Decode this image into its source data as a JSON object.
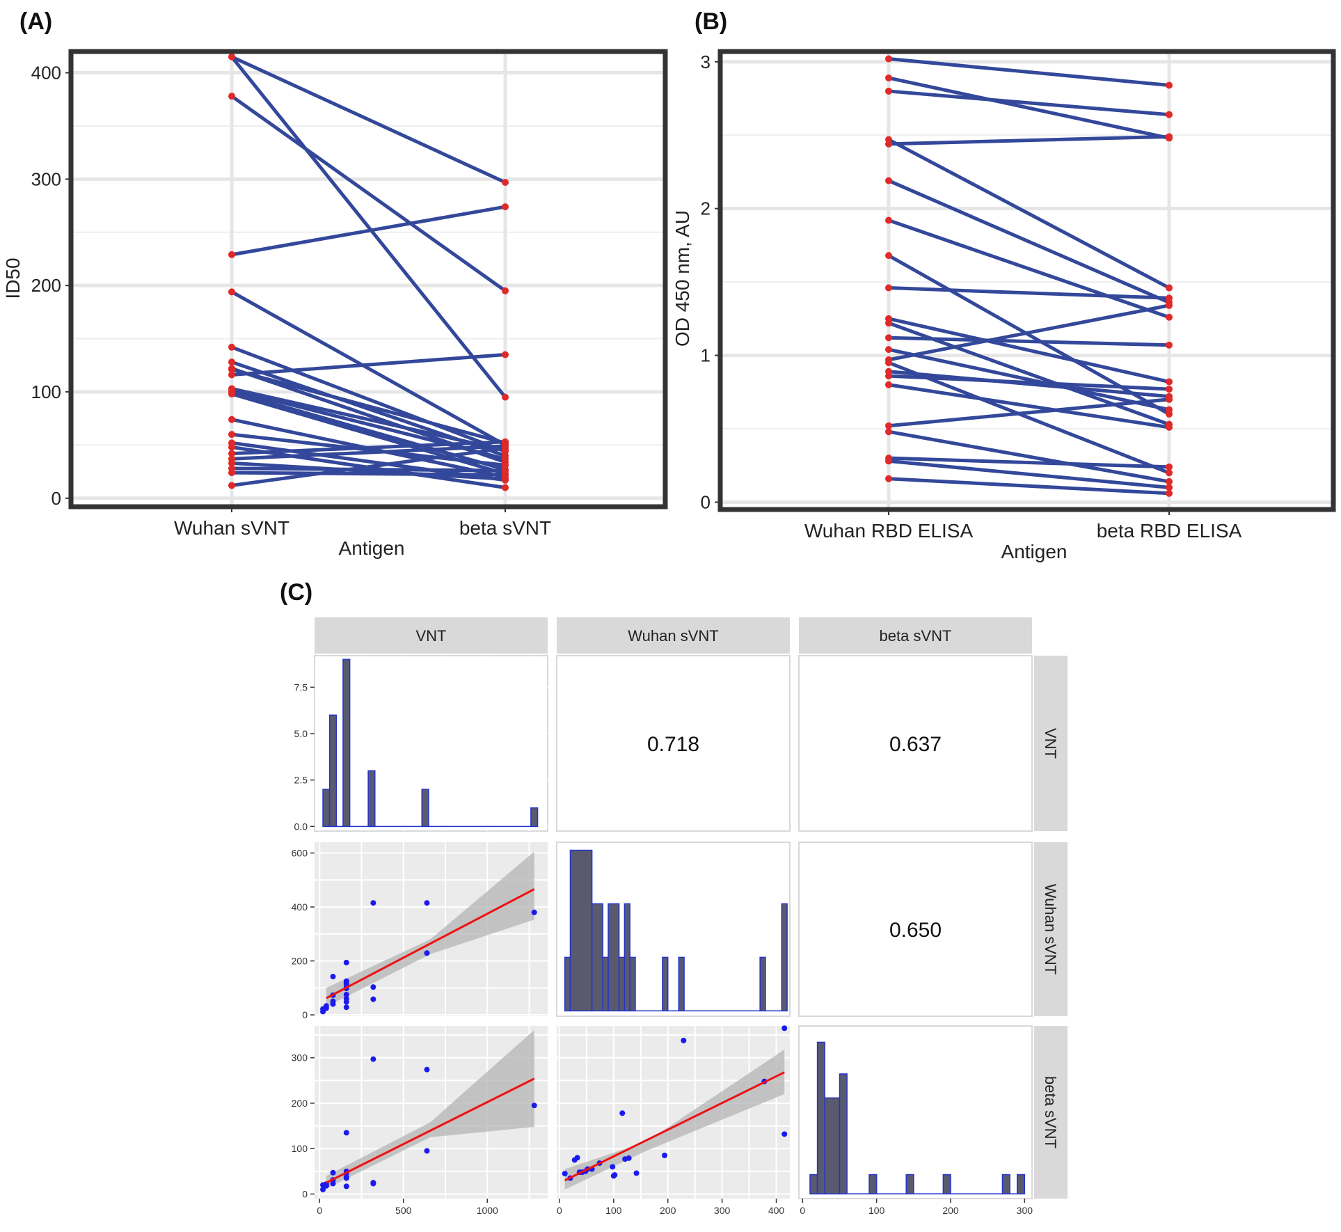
{
  "panels": {
    "A": "(A)",
    "B": "(B)",
    "C": "(C)"
  },
  "colors": {
    "line": "#33489a",
    "point": "#e02a2a",
    "hist_fill": "#5a5a6e",
    "hist_edge": "#2233cc",
    "scatter": "#1a1aee",
    "fit": "#ee1111",
    "ribbon": "#b4b4b4",
    "panel_bg": "#ebebeb"
  },
  "chart_data": [
    {
      "type": "line",
      "panel": "(A)",
      "ylabel": "ID50",
      "xlabel": "Antigen",
      "categories": [
        "Wuhan sVNT",
        "beta sVNT"
      ],
      "ylim": [
        -8,
        420
      ],
      "yticks": [
        0,
        100,
        200,
        300,
        400
      ],
      "grid": true,
      "pairs": [
        [
          415,
          95
        ],
        [
          415,
          297
        ],
        [
          378,
          195
        ],
        [
          229,
          274
        ],
        [
          194,
          50
        ],
        [
          142,
          44
        ],
        [
          128,
          40
        ],
        [
          122,
          34
        ],
        [
          116,
          135
        ],
        [
          121,
          52
        ],
        [
          103,
          45
        ],
        [
          102,
          37
        ],
        [
          100,
          27
        ],
        [
          98,
          23
        ],
        [
          74,
          20
        ],
        [
          60,
          31
        ],
        [
          52,
          17
        ],
        [
          48,
          10
        ],
        [
          42,
          53
        ],
        [
          37,
          49
        ],
        [
          33,
          18
        ],
        [
          28,
          26
        ],
        [
          24,
          22
        ],
        [
          12,
          47
        ]
      ]
    },
    {
      "type": "line",
      "panel": "(B)",
      "ylabel": "OD 450 nm, AU",
      "xlabel": "Antigen",
      "categories": [
        "Wuhan RBD ELISA",
        "beta RBD ELISA"
      ],
      "ylim": [
        -0.05,
        3.07
      ],
      "yticks": [
        0,
        1,
        2,
        3
      ],
      "grid": true,
      "pairs": [
        [
          3.02,
          2.84
        ],
        [
          2.89,
          2.48
        ],
        [
          2.8,
          2.64
        ],
        [
          2.47,
          1.46
        ],
        [
          2.44,
          2.49
        ],
        [
          2.19,
          1.36
        ],
        [
          1.92,
          1.26
        ],
        [
          1.68,
          0.6
        ],
        [
          1.46,
          1.39
        ],
        [
          1.25,
          0.82
        ],
        [
          1.22,
          0.53
        ],
        [
          1.12,
          1.07
        ],
        [
          1.04,
          0.63
        ],
        [
          0.97,
          1.34
        ],
        [
          0.95,
          0.2
        ],
        [
          0.89,
          0.72
        ],
        [
          0.86,
          0.77
        ],
        [
          0.8,
          0.51
        ],
        [
          0.52,
          0.7
        ],
        [
          0.48,
          0.14
        ],
        [
          0.3,
          0.24
        ],
        [
          0.28,
          0.1
        ],
        [
          0.16,
          0.06
        ]
      ]
    },
    {
      "type": "scatter",
      "panel": "(C)",
      "variables": [
        "VNT",
        "Wuhan sVNT",
        "beta sVNT"
      ],
      "correlations": [
        {
          "pair": [
            "VNT",
            "Wuhan sVNT"
          ],
          "label": "0.718"
        },
        {
          "pair": [
            "VNT",
            "beta sVNT"
          ],
          "label": "0.637"
        },
        {
          "pair": [
            "Wuhan sVNT",
            "beta sVNT"
          ],
          "label": "0.650"
        }
      ],
      "hist_vnt": {
        "xlim": [
          -30,
          1360
        ],
        "ylim": [
          -0.25,
          9.2
        ],
        "yticks": [
          0.0,
          2.5,
          5.0,
          7.5
        ],
        "ytick_labels": [
          "0.0",
          "2.5",
          "5.0",
          "7.5"
        ],
        "bins": [
          {
            "x0": 20,
            "x1": 60,
            "y": 2
          },
          {
            "x0": 60,
            "x1": 100,
            "y": 6
          },
          {
            "x0": 140,
            "x1": 180,
            "y": 9
          },
          {
            "x0": 290,
            "x1": 330,
            "y": 3
          },
          {
            "x0": 610,
            "x1": 650,
            "y": 2
          },
          {
            "x0": 1260,
            "x1": 1300,
            "y": 1
          }
        ]
      },
      "hist_wuhan": {
        "xlim": [
          -5,
          425
        ],
        "ylim": [
          -20,
          630
        ],
        "yticks": [
          0,
          200,
          400,
          600
        ],
        "bins": [
          {
            "x0": 10,
            "x1": 20,
            "y": 200
          },
          {
            "x0": 20,
            "x1": 60,
            "y": 600
          },
          {
            "x0": 60,
            "x1": 80,
            "y": 400
          },
          {
            "x0": 80,
            "x1": 90,
            "y": 200
          },
          {
            "x0": 90,
            "x1": 110,
            "y": 400
          },
          {
            "x0": 110,
            "x1": 120,
            "y": 200
          },
          {
            "x0": 120,
            "x1": 130,
            "y": 400
          },
          {
            "x0": 130,
            "x1": 140,
            "y": 200
          },
          {
            "x0": 190,
            "x1": 200,
            "y": 200
          },
          {
            "x0": 220,
            "x1": 230,
            "y": 200
          },
          {
            "x0": 370,
            "x1": 380,
            "y": 200
          },
          {
            "x0": 410,
            "x1": 420,
            "y": 400
          }
        ]
      },
      "hist_beta": {
        "xlim": [
          -5,
          310
        ],
        "ylim": [
          -5,
          175
        ],
        "bins": [
          {
            "x0": 10,
            "x1": 20,
            "y": 20
          },
          {
            "x0": 20,
            "x1": 30,
            "y": 158
          },
          {
            "x0": 30,
            "x1": 50,
            "y": 100
          },
          {
            "x0": 50,
            "x1": 60,
            "y": 125
          },
          {
            "x0": 90,
            "x1": 100,
            "y": 20
          },
          {
            "x0": 140,
            "x1": 150,
            "y": 20
          },
          {
            "x0": 190,
            "x1": 200,
            "y": 20
          },
          {
            "x0": 270,
            "x1": 280,
            "y": 20
          },
          {
            "x0": 290,
            "x1": 300,
            "y": 20
          }
        ]
      },
      "vnt_axis": {
        "xlim": [
          -30,
          1360
        ],
        "xticks": [
          0,
          500,
          1000
        ]
      },
      "wuhan_axis": {
        "lim": [
          -5,
          425
        ],
        "ticks": [
          0,
          200,
          400
        ],
        "xticks": [
          0,
          100,
          200,
          300,
          400
        ]
      },
      "beta_axis": {
        "lim": [
          -10,
          370
        ],
        "ticks": [
          0,
          100,
          200,
          300
        ],
        "xlim": [
          -5,
          310
        ],
        "xticks": [
          0,
          100,
          200,
          300
        ]
      },
      "scatter_vnt_wuhan": {
        "points": [
          [
            20,
            12
          ],
          [
            20,
            22
          ],
          [
            40,
            25
          ],
          [
            40,
            33
          ],
          [
            80,
            40
          ],
          [
            80,
            50
          ],
          [
            80,
            73
          ],
          [
            80,
            142
          ],
          [
            160,
            28
          ],
          [
            160,
            48
          ],
          [
            160,
            60
          ],
          [
            160,
            75
          ],
          [
            160,
            98
          ],
          [
            160,
            103
          ],
          [
            160,
            115
          ],
          [
            160,
            120
          ],
          [
            160,
            125
          ],
          [
            160,
            194
          ],
          [
            320,
            58
          ],
          [
            320,
            103
          ],
          [
            320,
            415
          ],
          [
            640,
            229
          ],
          [
            640,
            415
          ],
          [
            1280,
            380
          ]
        ],
        "fit": [
          [
            40,
            62
          ],
          [
            1280,
            466
          ]
        ],
        "band_low": [
          [
            40,
            30
          ],
          [
            660,
            225
          ],
          [
            1280,
            353
          ]
        ],
        "band_high": [
          [
            40,
            100
          ],
          [
            660,
            280
          ],
          [
            1280,
            605
          ]
        ]
      },
      "scatter_vnt_beta": {
        "points": [
          [
            20,
            10
          ],
          [
            20,
            20
          ],
          [
            40,
            18
          ],
          [
            40,
            22
          ],
          [
            80,
            23
          ],
          [
            80,
            31
          ],
          [
            80,
            47
          ],
          [
            160,
            17
          ],
          [
            160,
            35
          ],
          [
            160,
            37
          ],
          [
            160,
            45
          ],
          [
            160,
            50
          ],
          [
            160,
            135
          ],
          [
            320,
            23
          ],
          [
            320,
            25
          ],
          [
            320,
            297
          ],
          [
            640,
            95
          ],
          [
            640,
            274
          ],
          [
            1280,
            195
          ]
        ],
        "fit": [
          [
            40,
            25
          ],
          [
            1280,
            254
          ]
        ],
        "band_low": [
          [
            40,
            12
          ],
          [
            660,
            125
          ],
          [
            1280,
            148
          ]
        ],
        "band_high": [
          [
            40,
            40
          ],
          [
            660,
            158
          ],
          [
            1280,
            361
          ]
        ]
      },
      "scatter_wuhan_beta": {
        "points": [
          [
            10,
            45
          ],
          [
            20,
            35
          ],
          [
            28,
            75
          ],
          [
            33,
            80
          ],
          [
            37,
            48
          ],
          [
            42,
            48
          ],
          [
            48,
            50
          ],
          [
            52,
            55
          ],
          [
            60,
            55
          ],
          [
            74,
            68
          ],
          [
            98,
            60
          ],
          [
            100,
            40
          ],
          [
            102,
            42
          ],
          [
            116,
            178
          ],
          [
            121,
            77
          ],
          [
            128,
            79
          ],
          [
            142,
            46
          ],
          [
            194,
            85
          ],
          [
            229,
            338
          ],
          [
            378,
            248
          ],
          [
            415,
            365
          ],
          [
            415,
            132
          ]
        ],
        "fit": [
          [
            10,
            30
          ],
          [
            415,
            268
          ]
        ],
        "band_low": [
          [
            10,
            10
          ],
          [
            160,
            95
          ],
          [
            415,
            220
          ]
        ],
        "band_high": [
          [
            10,
            55
          ],
          [
            160,
            115
          ],
          [
            415,
            318
          ]
        ]
      }
    }
  ]
}
